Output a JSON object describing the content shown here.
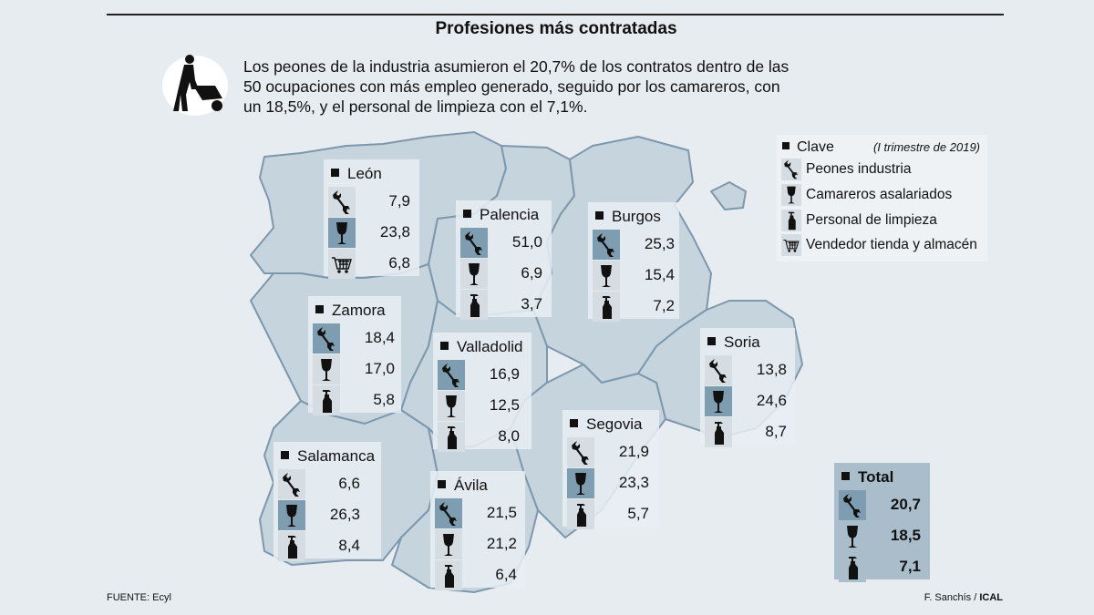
{
  "title": "Profesiones más contratadas",
  "intro": "Los peones de la industria asumieron el 20,7% de los contratos dentro de las 50 ocupaciones con más empleo generado, seguido por los camareros, con un 18,5%, y el personal de limpieza con el 7,1%.",
  "legend": {
    "title": "Clave",
    "period": "(I trimestre de 2019)",
    "items": [
      {
        "icon": "wrench-icon",
        "label": "Peones industria"
      },
      {
        "icon": "wine-glass-icon",
        "label": "Camareros asalariados"
      },
      {
        "icon": "spray-bottle-icon",
        "label": "Personal de limpieza"
      },
      {
        "icon": "shopping-cart-icon",
        "label": "Vendedor tienda y almacén"
      }
    ]
  },
  "colors": {
    "background": "#e7ecf0",
    "map_fill": "#c6d4de",
    "border": "#7d98ad",
    "highlight": "#7f9db0"
  },
  "provinces": [
    {
      "name": "León",
      "rows": [
        {
          "icon": "wrench",
          "value": "7,9"
        },
        {
          "icon": "glass",
          "value": "23,8",
          "top": true
        },
        {
          "icon": "cart",
          "value": "6,8"
        }
      ]
    },
    {
      "name": "Palencia",
      "rows": [
        {
          "icon": "wrench",
          "value": "51,0",
          "top": true
        },
        {
          "icon": "glass",
          "value": "6,9"
        },
        {
          "icon": "spray",
          "value": "3,7"
        }
      ]
    },
    {
      "name": "Burgos",
      "rows": [
        {
          "icon": "wrench",
          "value": "25,3",
          "top": true
        },
        {
          "icon": "glass",
          "value": "15,4"
        },
        {
          "icon": "spray",
          "value": "7,2"
        }
      ]
    },
    {
      "name": "Zamora",
      "rows": [
        {
          "icon": "wrench",
          "value": "18,4",
          "top": true
        },
        {
          "icon": "glass",
          "value": "17,0"
        },
        {
          "icon": "spray",
          "value": "5,8"
        }
      ]
    },
    {
      "name": "Valladolid",
      "rows": [
        {
          "icon": "wrench",
          "value": "16,9",
          "top": true
        },
        {
          "icon": "glass",
          "value": "12,5"
        },
        {
          "icon": "spray",
          "value": "8,0"
        }
      ]
    },
    {
      "name": "Soria",
      "rows": [
        {
          "icon": "wrench",
          "value": "13,8"
        },
        {
          "icon": "glass",
          "value": "24,6",
          "top": true
        },
        {
          "icon": "spray",
          "value": "8,7"
        }
      ]
    },
    {
      "name": "Segovia",
      "rows": [
        {
          "icon": "wrench",
          "value": "21,9"
        },
        {
          "icon": "glass",
          "value": "23,3",
          "top": true
        },
        {
          "icon": "spray",
          "value": "5,7"
        }
      ]
    },
    {
      "name": "Salamanca",
      "rows": [
        {
          "icon": "wrench",
          "value": "6,6"
        },
        {
          "icon": "glass",
          "value": "26,3",
          "top": true
        },
        {
          "icon": "spray",
          "value": "8,4"
        }
      ]
    },
    {
      "name": "Ávila",
      "rows": [
        {
          "icon": "wrench",
          "value": "21,5",
          "top": true
        },
        {
          "icon": "glass",
          "value": "21,2"
        },
        {
          "icon": "spray",
          "value": "6,4"
        }
      ]
    },
    {
      "name": "Total",
      "rows": [
        {
          "icon": "wrench",
          "value": "20,7",
          "top": true
        },
        {
          "icon": "glass",
          "value": "18,5"
        },
        {
          "icon": "spray",
          "value": "7,1"
        }
      ]
    }
  ],
  "source": "FUENTE: Ecyl",
  "credit_author": "F. Sanchís / ",
  "credit_agency": "ICAL"
}
